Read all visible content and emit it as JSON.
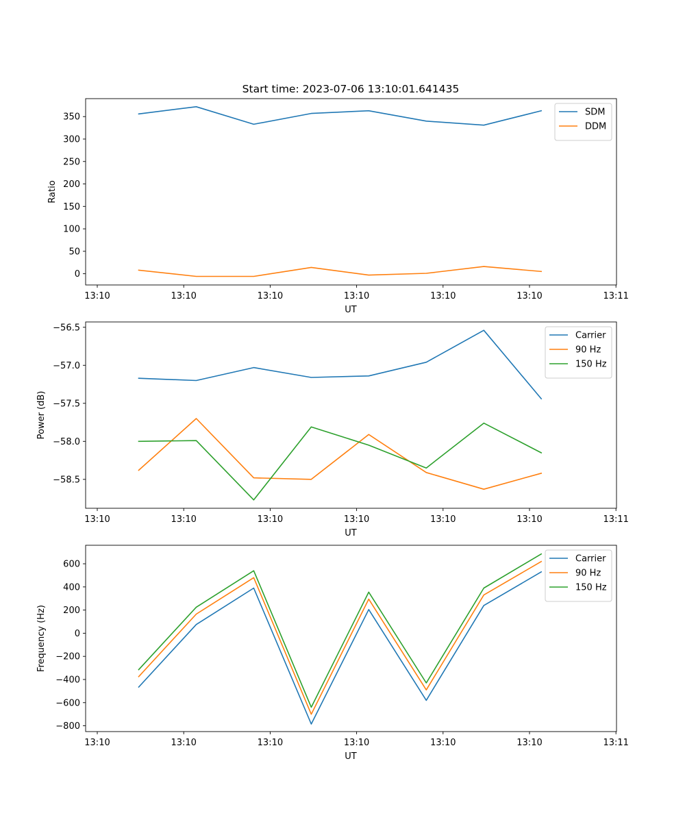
{
  "title": "Start time: 2023-07-06 13:10:01.641435",
  "chart_data": [
    {
      "type": "line",
      "title": "Start time: 2023-07-06 13:10:01.641435",
      "xlabel": "UT",
      "ylabel": "Ratio",
      "x_ticks": [
        "13:10",
        "13:10",
        "13:10",
        "13:10",
        "13:10",
        "13:10",
        "13:11"
      ],
      "x": [
        0.5,
        1.15,
        1.8,
        2.45,
        3.1,
        3.75,
        4.4,
        5.05
      ],
      "xlim": [
        -0.1,
        5.9
      ],
      "ylim": [
        -25,
        390
      ],
      "y_ticks": [
        0,
        50,
        100,
        150,
        200,
        250,
        300,
        350
      ],
      "legend": "top-right",
      "series": [
        {
          "name": "SDM",
          "color": "#1f77b4",
          "values": [
            356,
            372,
            333,
            357,
            363,
            340,
            331,
            363
          ]
        },
        {
          "name": "DDM",
          "color": "#ff7f0e",
          "values": [
            8,
            -6,
            -6,
            14,
            -3,
            1,
            16,
            5
          ]
        }
      ]
    },
    {
      "type": "line",
      "title": "",
      "xlabel": "UT",
      "ylabel": "Power (dB)",
      "x_ticks": [
        "13:10",
        "13:10",
        "13:10",
        "13:10",
        "13:10",
        "13:10",
        "13:11"
      ],
      "x": [
        0.5,
        1.15,
        1.8,
        2.45,
        3.1,
        3.75,
        4.4,
        5.05
      ],
      "xlim": [
        -0.1,
        5.9
      ],
      "ylim": [
        -58.88,
        -56.43
      ],
      "y_ticks": [
        -58.5,
        -58.0,
        -57.5,
        -57.0,
        -56.5
      ],
      "y_tick_labels": [
        "−58.5",
        "−58.0",
        "−57.5",
        "−57.0",
        "−56.5"
      ],
      "legend": "top-right",
      "series": [
        {
          "name": "Carrier",
          "color": "#1f77b4",
          "values": [
            -57.17,
            -57.2,
            -57.03,
            -57.16,
            -57.14,
            -56.96,
            -56.54,
            -57.44
          ]
        },
        {
          "name": "90 Hz",
          "color": "#ff7f0e",
          "values": [
            -58.38,
            -57.7,
            -58.48,
            -58.5,
            -57.91,
            -58.41,
            -58.63,
            -58.42
          ]
        },
        {
          "name": "150 Hz",
          "color": "#2ca02c",
          "values": [
            -58.0,
            -57.99,
            -58.77,
            -57.81,
            -58.05,
            -58.35,
            -57.76,
            -58.15
          ]
        }
      ]
    },
    {
      "type": "line",
      "title": "",
      "xlabel": "UT",
      "ylabel": "Frequency (Hz)",
      "x_ticks": [
        "13:10",
        "13:10",
        "13:10",
        "13:10",
        "13:10",
        "13:10",
        "13:11"
      ],
      "x": [
        0.5,
        1.15,
        1.8,
        2.45,
        3.1,
        3.75,
        4.4,
        5.05
      ],
      "xlim": [
        -0.1,
        5.9
      ],
      "ylim": [
        -850,
        760
      ],
      "y_ticks": [
        -800,
        -600,
        -400,
        -200,
        0,
        200,
        400,
        600
      ],
      "y_tick_labels": [
        "−800",
        "−600",
        "−400",
        "−200",
        "0",
        "200",
        "400",
        "600"
      ],
      "legend": "top-right",
      "series": [
        {
          "name": "Carrier",
          "color": "#1f77b4",
          "values": [
            -465,
            75,
            390,
            -785,
            205,
            -580,
            240,
            530
          ]
        },
        {
          "name": "90 Hz",
          "color": "#ff7f0e",
          "values": [
            -375,
            165,
            480,
            -700,
            295,
            -490,
            330,
            620
          ]
        },
        {
          "name": "150 Hz",
          "color": "#2ca02c",
          "values": [
            -315,
            225,
            540,
            -640,
            355,
            -430,
            390,
            685
          ]
        }
      ]
    }
  ]
}
